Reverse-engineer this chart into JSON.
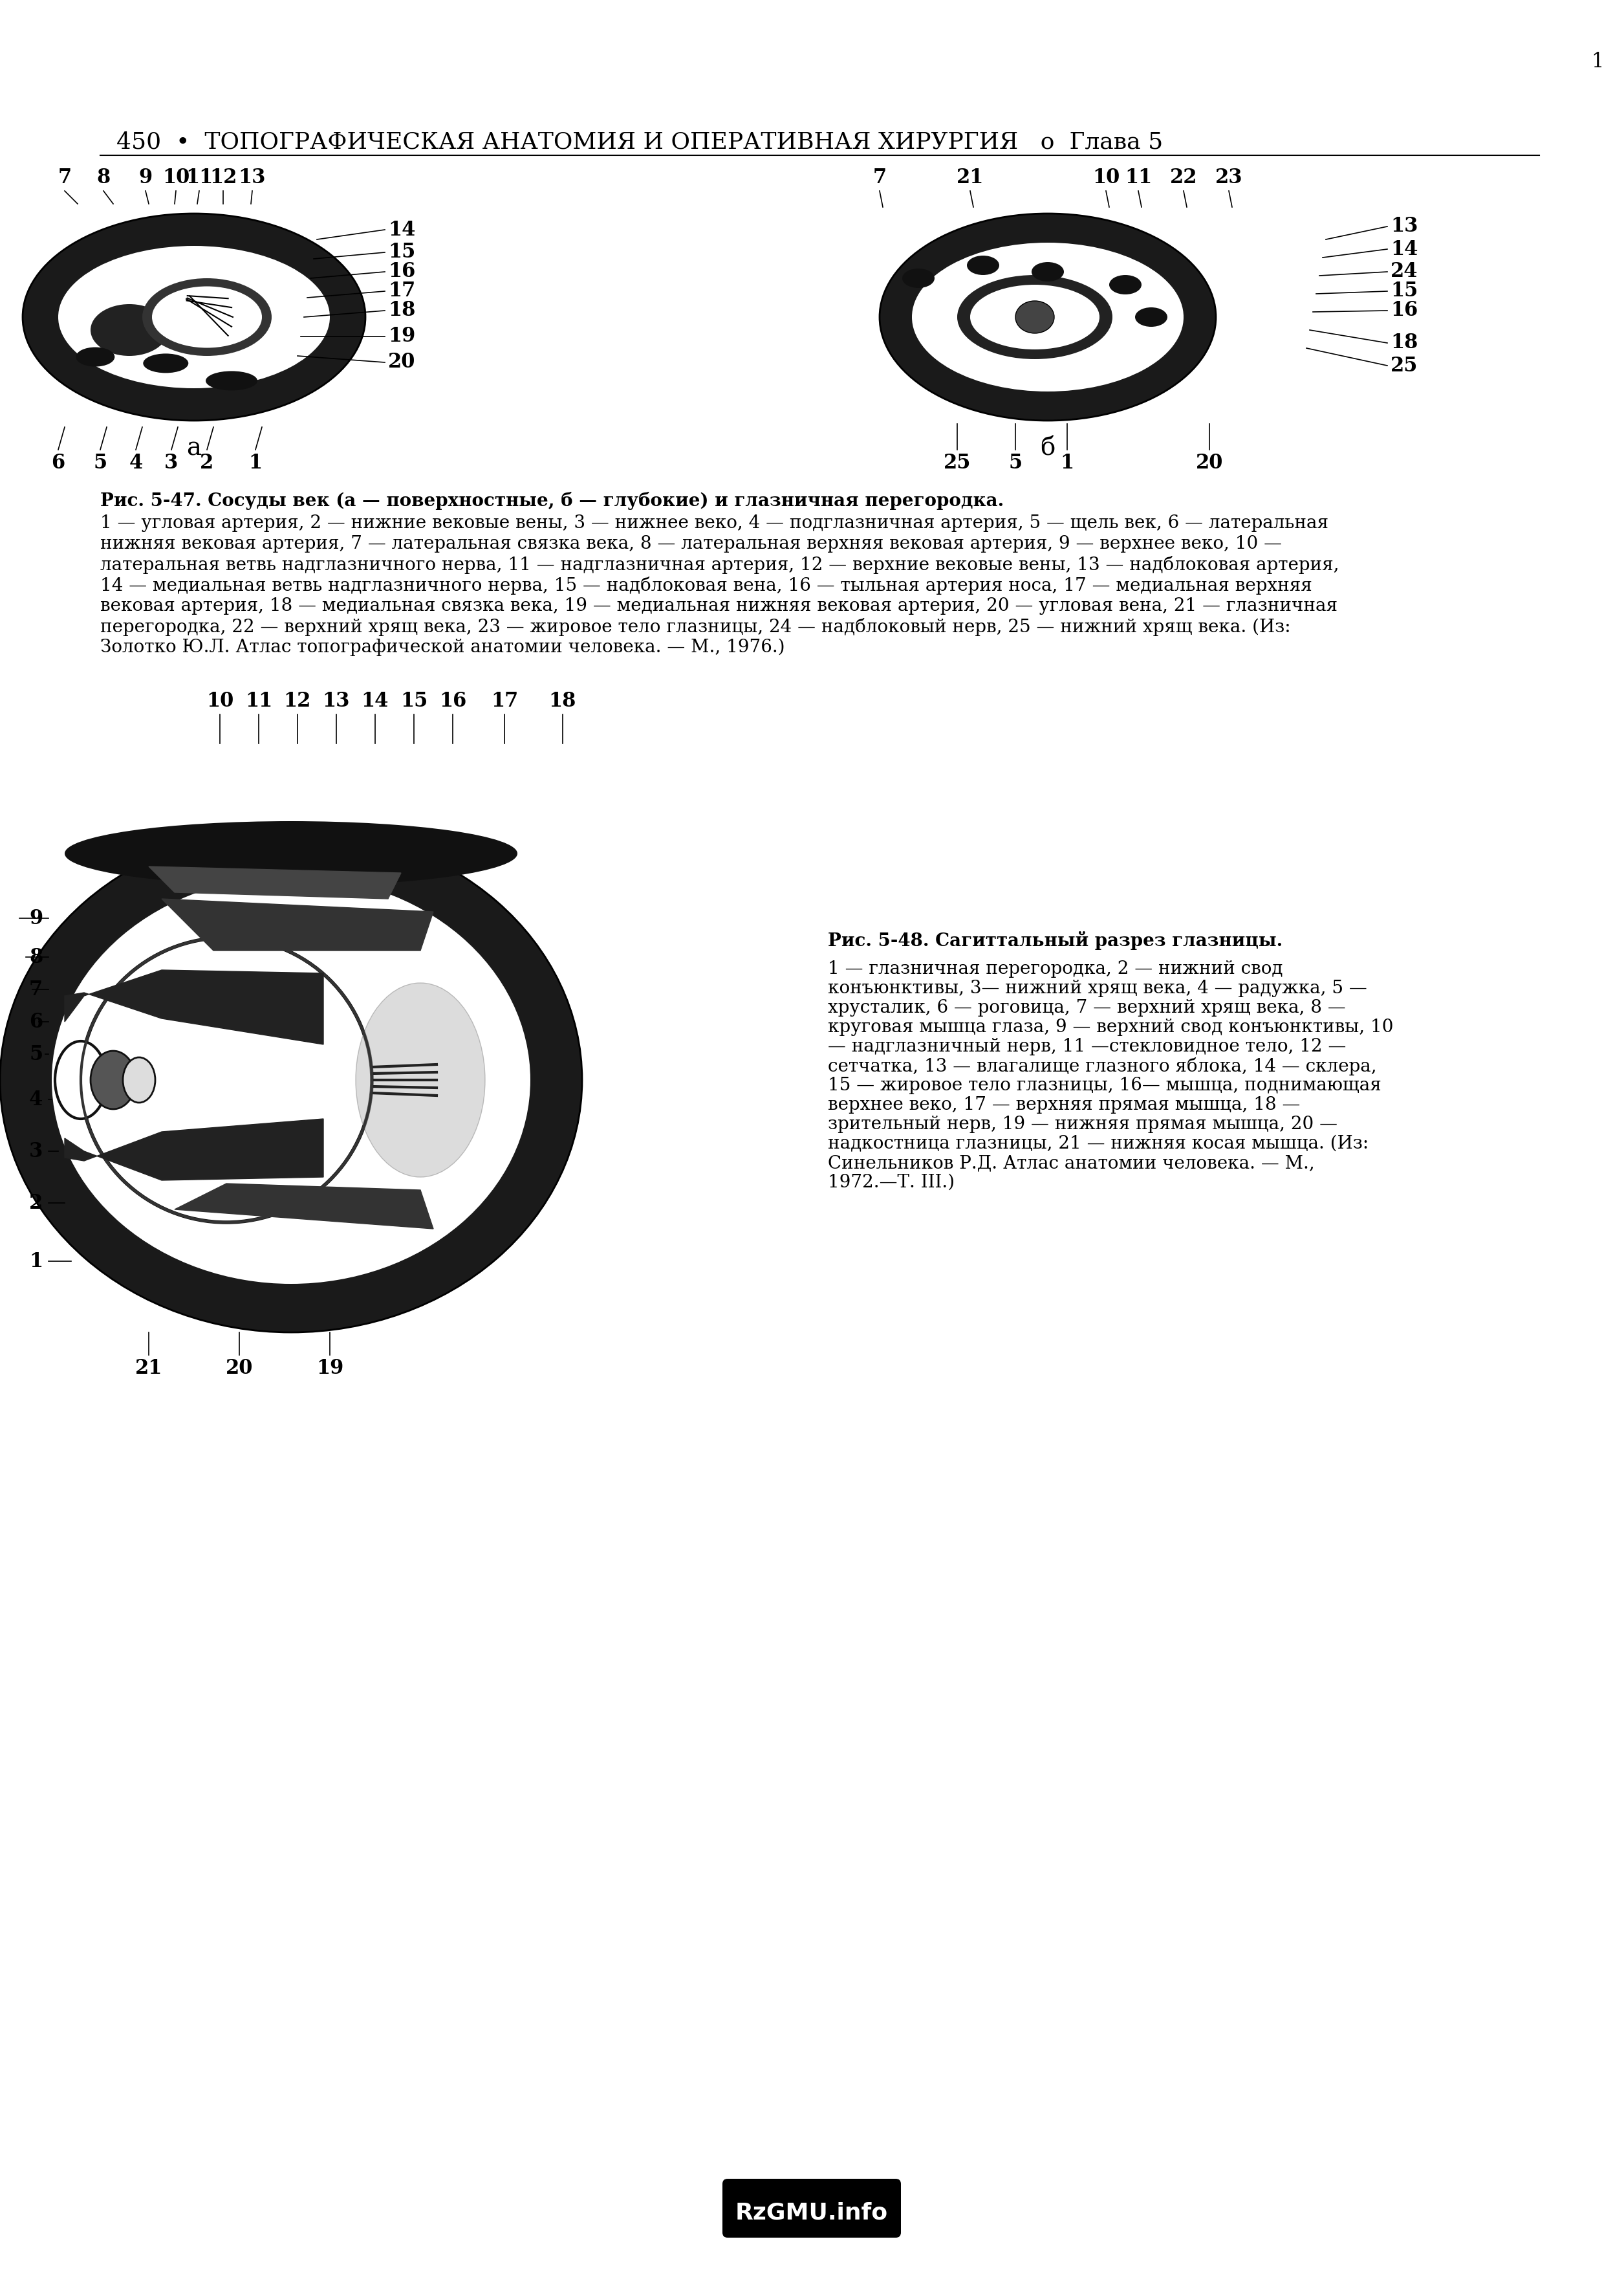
{
  "page_header": "450  •  ТОПОГРАФИЧЕСКАЯ АНАТОМИЯ И ОПЕРАТИВНАЯ ХИРУРГИЯ   o  Глава 5",
  "page_number": "1",
  "fig47_caption_bold": "Рис. 5-47. Сосуды век (а — поверхностные, б — глубокие) и глазничная перегородка.",
  "fig47_caption": "1 — угловая артерия, 2 — нижние вековые вены, 3 — нижнее веко, 4 — подглазничная артерия, 5 — щель век, 6 — латеральная нижняя вековая артерия, 7 — латеральная связка века, 8 — латеральная верхняя вековая артерия, 9 — верхнее веко, 10 — латеральная ветвь надглазничного нерва, 11 — надглазничная артерия, 12 — верхние вековые вены, 13 — надблоковая артерия, 14 — медиальная ветвь надглазничного нерва, 15 — надблоковая вена, 16 — тыльная артерия носа, 17 — медиальная верхняя вековая артерия, 18 — медиальная связка века, 19 — медиальная нижняя вековая артерия, 20 — угловая вена, 21 — глазничная перегородка, 22 — верхний хрящ века, 23 — жировое тело глазницы, 24 — надблоковый нерв, 25 — нижний хрящ века. (Из: Золотко Ю.Л. Атлас топографической анатомии человека. — М., 1976.)",
  "fig48_caption_bold": "Рис. 5-48. Сагиттальный разрез глазницы.",
  "fig48_caption": "1 — глазничная перегородка, 2 — нижний свод конъюнктивы, 3— нижний хрящ века, 4 — радужка, 5 — хрусталик, 6 — роговица, 7 — верхний хрящ века, 8 — круговая мышца глаза, 9 — верхний свод конъюнктивы, 10 — надглазничный нерв, 11 —стекловидное тело, 12 — сетчатка, 13 — влагалище глазного яблока, 14 — склера, 15 — жировое тело глазницы, 16— мышца, поднимающая верхнее веко, 17 — верхняя прямая мышца, 18 — зрительный нерв, 19 — нижняя прямая мышца, 20 — надкостница глазницы, 21 — нижняя косая мышца. (Из: Синельников Р.Д. Атлас анатомии человека. — М., 1972.—Т. III.)",
  "watermark": "RzGMU.info",
  "bg_color": "#ffffff",
  "text_color": "#000000"
}
